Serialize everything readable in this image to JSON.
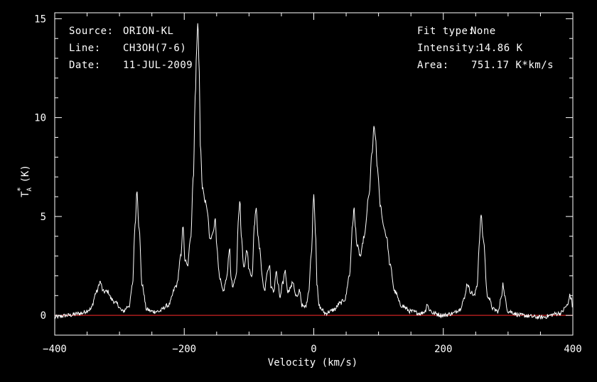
{
  "header": {
    "source_label": "Source:",
    "source_value": "ORION-KL",
    "line_label": "Line:",
    "line_value": "CH3OH(7-6)",
    "date_label": "Date:",
    "date_value": "11-JUL-2009",
    "fit_label": "Fit type:",
    "fit_value": "None",
    "intensity_label": "Intensity:",
    "intensity_value": "14.86 K",
    "area_label": "Area:",
    "area_value": "751.17 K*km/s"
  },
  "chart_data": {
    "type": "line",
    "title": "",
    "xlabel": "Velocity (km/s)",
    "ylabel": "T",
    "ylabel_sub": "A",
    "ylabel_sup": "*",
    "ylabel_unit": "(K)",
    "xlim": [
      -400,
      400
    ],
    "ylim": [
      -1,
      15.3
    ],
    "xticks": [
      -400,
      -200,
      0,
      200,
      400
    ],
    "yticks": [
      0,
      5,
      10,
      15
    ],
    "baseline": 0,
    "colors": {
      "spectrum": "#ffffff",
      "baseline": "#cc2222",
      "frame": "#ffffff",
      "background": "#000000"
    },
    "series": [
      {
        "values_note": "",
        "x": [
          -400,
          -380,
          -360,
          -345,
          -335,
          -330,
          -325,
          -318,
          -312,
          -305,
          -295,
          -285,
          -280,
          -276,
          -273,
          -270,
          -265,
          -258,
          -250,
          -240,
          -225,
          -212,
          -205,
          -202,
          -199,
          -195,
          -190,
          -186,
          -183,
          -181,
          -179,
          -177,
          -175,
          -172,
          -168,
          -165,
          -160,
          -155,
          -152,
          -150,
          -145,
          -140,
          -135,
          -130,
          -128,
          -125,
          -120,
          -116,
          -114,
          -112,
          -108,
          -103,
          -100,
          -95,
          -92,
          -89,
          -86,
          -83,
          -80,
          -76,
          -72,
          -68,
          -66,
          -62,
          -58,
          -55,
          -52,
          -48,
          -44,
          -42,
          -40,
          -36,
          -32,
          -28,
          -25,
          -22,
          -18,
          -15,
          -12,
          -8,
          -4,
          0,
          3,
          5,
          8,
          12,
          18,
          25,
          32,
          40,
          48,
          55,
          60,
          62,
          64,
          67,
          72,
          78,
          85,
          90,
          93,
          95,
          98,
          103,
          108,
          112,
          118,
          125,
          135,
          150,
          165,
          172,
          175,
          178,
          185,
          200,
          215,
          225,
          232,
          237,
          242,
          248,
          252,
          256,
          258,
          262,
          268,
          278,
          285,
          290,
          292,
          295,
          300,
          320,
          350,
          380,
          392,
          395,
          398,
          400
        ],
        "y": [
          -0.1,
          0,
          0.1,
          0.3,
          1.2,
          1.7,
          1.2,
          1.2,
          0.8,
          0.6,
          0.2,
          0.5,
          1.5,
          4.5,
          6.3,
          4.5,
          1.5,
          0.3,
          0.2,
          0.2,
          0.5,
          1.5,
          3.0,
          4.6,
          2.8,
          2.5,
          4.0,
          7.0,
          11.0,
          13.5,
          14.8,
          12.5,
          8.5,
          6.5,
          5.8,
          5.4,
          3.8,
          4.2,
          5.0,
          3.5,
          1.8,
          1.2,
          1.8,
          3.4,
          2.0,
          1.4,
          2.0,
          5.0,
          5.9,
          4.0,
          2.5,
          3.3,
          2.3,
          2.0,
          4.5,
          5.5,
          4.0,
          3.3,
          2.0,
          1.2,
          2.2,
          2.5,
          1.4,
          1.2,
          2.2,
          1.5,
          0.9,
          1.6,
          2.3,
          1.6,
          1.2,
          1.4,
          1.7,
          1.0,
          0.9,
          1.3,
          0.5,
          0.4,
          0.5,
          1.2,
          3.0,
          6.1,
          4.0,
          1.5,
          0.5,
          0.3,
          0.1,
          0.2,
          0.3,
          0.6,
          0.8,
          2.0,
          4.5,
          5.5,
          4.5,
          3.5,
          3.0,
          4.0,
          6.0,
          8.2,
          9.5,
          9.1,
          7.5,
          5.5,
          4.5,
          4.0,
          2.5,
          1.2,
          0.5,
          0.2,
          0.1,
          0.2,
          0.6,
          0.3,
          0.1,
          0,
          0.1,
          0.3,
          0.8,
          1.6,
          1.2,
          1.0,
          1.5,
          3.8,
          5.1,
          3.8,
          1.0,
          0.3,
          0.2,
          1.0,
          1.6,
          0.9,
          0.2,
          0,
          -0.1,
          0.1,
          0.5,
          1.0,
          0.8,
          0.3
        ]
      }
    ]
  }
}
